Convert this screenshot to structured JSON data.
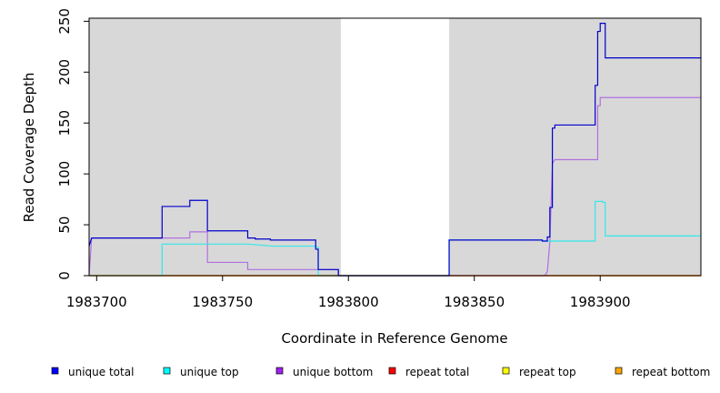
{
  "chart_data": {
    "type": "line",
    "xlabel": "Coordinate in Reference Genome",
    "ylabel": "Read Coverage Depth",
    "xlim": [
      1983697,
      1983940
    ],
    "ylim": [
      0,
      253
    ],
    "xticks": [
      1983700,
      1983750,
      1983800,
      1983850,
      1983900
    ],
    "yticks": [
      0,
      50,
      100,
      150,
      200,
      250
    ],
    "xtick_labels": [
      "1983700",
      "1983750",
      "1983800",
      "1983850",
      "1983900"
    ],
    "ytick_labels": [
      "0",
      "50",
      "100",
      "150",
      "200",
      "250"
    ],
    "shaded_regions": [
      [
        1983697,
        1983797
      ],
      [
        1983840,
        1983940
      ]
    ],
    "shade_color": "#d8d8d8",
    "legend_position": "bottom",
    "series": [
      {
        "name": "unique total",
        "color": "#0000cc",
        "points": [
          [
            1983697,
            29
          ],
          [
            1983698,
            37
          ],
          [
            1983726,
            37
          ],
          [
            1983726,
            68
          ],
          [
            1983737,
            68
          ],
          [
            1983737,
            74
          ],
          [
            1983744,
            74
          ],
          [
            1983744,
            44
          ],
          [
            1983760,
            44
          ],
          [
            1983760,
            37
          ],
          [
            1983763,
            37
          ],
          [
            1983763,
            36
          ],
          [
            1983769,
            36
          ],
          [
            1983769,
            35
          ],
          [
            1983787,
            35
          ],
          [
            1983787,
            26
          ],
          [
            1983788,
            26
          ],
          [
            1983788,
            6
          ],
          [
            1983796,
            6
          ],
          [
            1983796,
            0
          ],
          [
            1983840,
            0
          ],
          [
            1983840,
            35
          ],
          [
            1983877,
            35
          ],
          [
            1983877,
            34
          ],
          [
            1983879,
            34
          ],
          [
            1983879,
            38
          ],
          [
            1983880,
            38
          ],
          [
            1983880,
            67
          ],
          [
            1983881,
            67
          ],
          [
            1983881,
            145
          ],
          [
            1983882,
            145
          ],
          [
            1983882,
            148
          ],
          [
            1983898,
            148
          ],
          [
            1983898,
            187
          ],
          [
            1983899,
            187
          ],
          [
            1983899,
            240
          ],
          [
            1983900,
            240
          ],
          [
            1983900,
            248
          ],
          [
            1983902,
            248
          ],
          [
            1983902,
            214
          ],
          [
            1983940,
            214
          ]
        ]
      },
      {
        "name": "unique top",
        "color": "#33e8e8",
        "points": [
          [
            1983697,
            0
          ],
          [
            1983726,
            0
          ],
          [
            1983726,
            31
          ],
          [
            1983760,
            31
          ],
          [
            1983765,
            30
          ],
          [
            1983770,
            29
          ],
          [
            1983787,
            29
          ],
          [
            1983787,
            28
          ],
          [
            1983788,
            28
          ],
          [
            1983788,
            0
          ],
          [
            1983840,
            0
          ],
          [
            1983840,
            35
          ],
          [
            1983877,
            35
          ],
          [
            1983877,
            34
          ],
          [
            1983880,
            34
          ],
          [
            1983898,
            34
          ],
          [
            1983898,
            73
          ],
          [
            1983901,
            73
          ],
          [
            1983901,
            72
          ],
          [
            1983902,
            72
          ],
          [
            1983902,
            39
          ],
          [
            1983940,
            39
          ]
        ]
      },
      {
        "name": "unique bottom",
        "color": "#b070e0",
        "points": [
          [
            1983697,
            0
          ],
          [
            1983698,
            37
          ],
          [
            1983737,
            37
          ],
          [
            1983737,
            43
          ],
          [
            1983744,
            43
          ],
          [
            1983744,
            13
          ],
          [
            1983760,
            13
          ],
          [
            1983760,
            6
          ],
          [
            1983796,
            6
          ],
          [
            1983796,
            0
          ],
          [
            1983878,
            0
          ],
          [
            1983879,
            4
          ],
          [
            1983880,
            33
          ],
          [
            1983881,
            110
          ],
          [
            1983882,
            114
          ],
          [
            1983899,
            114
          ],
          [
            1983899,
            167
          ],
          [
            1983900,
            167
          ],
          [
            1983900,
            175
          ],
          [
            1983940,
            175
          ]
        ]
      },
      {
        "name": "repeat total",
        "color": "#ff0000",
        "points": [
          [
            1983697,
            0
          ],
          [
            1983940,
            0
          ]
        ]
      },
      {
        "name": "repeat top",
        "color": "#ffff00",
        "points": [
          [
            1983697,
            0
          ],
          [
            1983940,
            0
          ]
        ]
      },
      {
        "name": "repeat bottom",
        "color": "#ffa500",
        "points": [
          [
            1983697,
            0
          ],
          [
            1983940,
            0
          ]
        ]
      }
    ],
    "legend_swatch_colors": [
      "#0000ff",
      "#00ffff",
      "#a020f0",
      "#ff0000",
      "#ffff00",
      "#ffa500"
    ]
  }
}
